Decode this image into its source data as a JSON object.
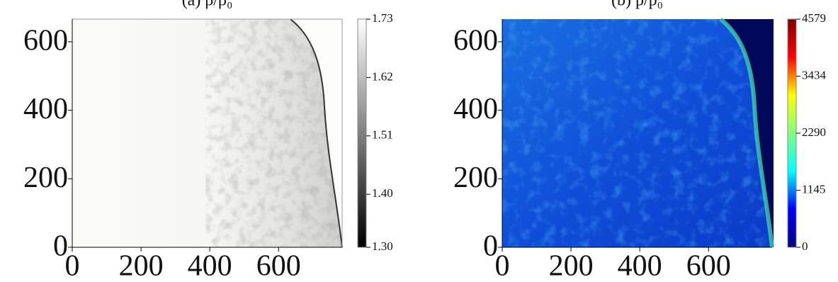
{
  "chart_data": [
    {
      "type": "heatmap",
      "title": "(a) ρ/ρ₀",
      "xlim": [
        0,
        785
      ],
      "xticks": [
        0,
        200,
        400,
        600
      ],
      "ylim": [
        0,
        666
      ],
      "yticks": [
        0,
        200,
        400,
        600
      ],
      "colorbar": {
        "lim": [
          1.3,
          1.73
        ],
        "ticks": [
          {
            "value": 1.3,
            "label": "1.30"
          },
          {
            "value": 1.4,
            "label": "1.40"
          },
          1.51,
          1.62,
          1.73
        ],
        "colormap": [
          "#000000",
          "#ffffff"
        ]
      }
    },
    {
      "type": "heatmap",
      "title": "(b) p/p₀",
      "xlim": [
        0,
        785
      ],
      "xticks": [
        0,
        200,
        400,
        600
      ],
      "ylim": [
        0,
        666
      ],
      "yticks": [
        0,
        200,
        400,
        600
      ],
      "colorbar": {
        "lim": [
          0,
          4579
        ],
        "ticks": [
          0,
          1145,
          2290,
          3434,
          4579
        ],
        "colormap": [
          "#00007f",
          "#0000ff",
          "#00ffff",
          "#7fff7f",
          "#ffff00",
          "#ff0000",
          "#7f0000"
        ]
      }
    }
  ]
}
